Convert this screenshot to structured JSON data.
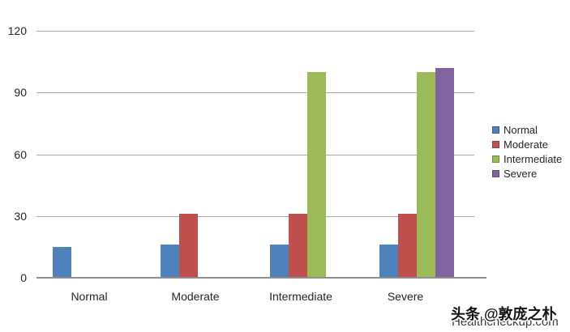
{
  "chart_data": {
    "type": "bar",
    "title": "",
    "categories": [
      "Normal",
      "Moderate",
      "Intermediate",
      "Severe"
    ],
    "series": [
      {
        "name": "Normal",
        "color": "#4f81bd",
        "values": [
          15,
          16,
          16,
          16
        ]
      },
      {
        "name": "Moderate",
        "color": "#c0504d",
        "values": [
          0,
          31,
          31,
          31
        ]
      },
      {
        "name": "Intermediate",
        "color": "#9bbb59",
        "values": [
          0,
          0,
          100,
          100
        ]
      },
      {
        "name": "Severe",
        "color": "#8064a2",
        "values": [
          0,
          0,
          0,
          102
        ]
      }
    ],
    "xlabel": "",
    "ylabel": "",
    "ylim": [
      0,
      120
    ],
    "yticks": [
      0,
      30,
      60,
      90,
      120
    ],
    "grid": true,
    "legend_position": "right"
  },
  "colors": {
    "gridline": "#a9a9a9",
    "axis_line": "#8f8f8f",
    "text": "#262626",
    "background": "#ffffff"
  },
  "watermarks": {
    "site": "Healthcheckup.com",
    "social": "头条 @敦庞之朴"
  }
}
